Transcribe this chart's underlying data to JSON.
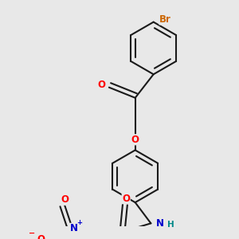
{
  "bg_color": "#e8e8e8",
  "bond_color": "#1a1a1a",
  "bond_width": 1.5,
  "dbo": 0.018,
  "atom_colors": {
    "O": "#ff0000",
    "N": "#0000cc",
    "Br": "#cc6600",
    "H": "#008888",
    "C": "#1a1a1a"
  },
  "fs": 8.5
}
